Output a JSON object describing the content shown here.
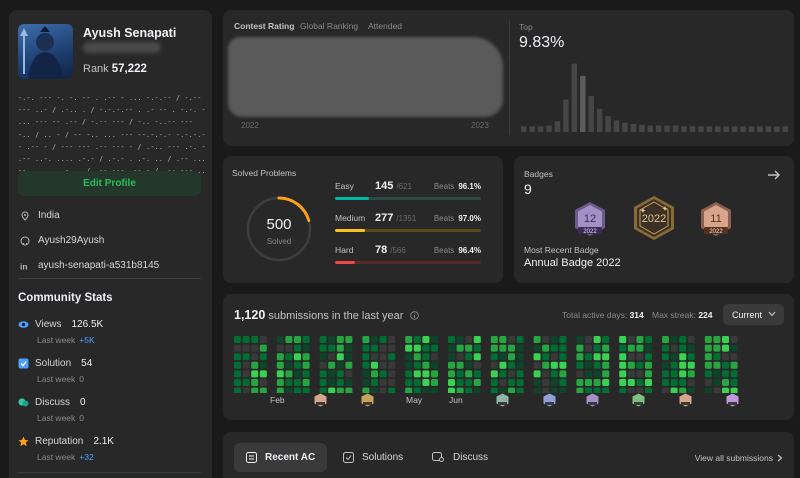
{
  "profile": {
    "username": "Ayush Senapati",
    "rank_label": "Rank",
    "rank_value": "57,222",
    "bio": "-.-. --- -.  -. -- . .-- - ... -.-.--  / -.-- --- ..- / .-.. . / -.-.-.-- . .- -- . -.-. - ... ---  --  .-- / -.-- --- / -.. -..-- --- -.. / .. - / -- -.. ... --- --.-.-.-  -.-.-.-- .-- - / --- --- .-- ---  - / .-.. --- .-. - .-- ..-. .... .-.- / .-.- . .-. .. / .-- ...-- .... . .- .. / .-- --- .-- - / .-- --- ..-",
    "edit_profile": "Edit Profile",
    "location": "India",
    "github": "Ayush29Ayush",
    "linkedin": "ayush-senapati-a531b8145"
  },
  "community": {
    "title": "Community Stats",
    "last_week_label": "Last week",
    "items": [
      {
        "label": "Views",
        "value": "126.5K",
        "delta": "+5K",
        "icon": "eye-icon",
        "color": "#2db55d"
      },
      {
        "label": "Solution",
        "value": "54",
        "delta": "0",
        "icon": "check-square-icon",
        "color": "#4ba0ff"
      },
      {
        "label": "Discuss",
        "value": "0",
        "delta": "0",
        "icon": "discuss-icon",
        "color": "#2ec7a8"
      },
      {
        "label": "Reputation",
        "value": "2.1K",
        "delta": "+32",
        "icon": "star-icon",
        "color": "#ffa116"
      }
    ]
  },
  "contest": {
    "tabs": [
      "Contest Rating",
      "Global Ranking",
      "Attended"
    ],
    "year_start": "2022",
    "year_end": "2023",
    "top_label": "Top",
    "top_value": "9.83%"
  },
  "chart_data": {
    "type": "bar",
    "title": "Top",
    "xlabel": "",
    "ylabel": "",
    "ylim": [
      0,
      100
    ],
    "categories": [
      "1",
      "2",
      "3",
      "4",
      "5",
      "6",
      "7",
      "8",
      "9",
      "10",
      "11",
      "12",
      "13",
      "14",
      "15",
      "16",
      "17",
      "18",
      "19",
      "20",
      "21",
      "22",
      "23",
      "24",
      "25",
      "26",
      "27",
      "28",
      "29",
      "30",
      "31",
      "32"
    ],
    "values": [
      8,
      8,
      8,
      9,
      15,
      45,
      95,
      78,
      50,
      32,
      22,
      16,
      13,
      11,
      10,
      9,
      9,
      9,
      9,
      8,
      8,
      8,
      8,
      8,
      8,
      8,
      8,
      8,
      8,
      8,
      8,
      8
    ],
    "highlight_index": 7
  },
  "solved": {
    "title": "Solved Problems",
    "count": "500",
    "count_label": "Solved",
    "beats_label": "Beats",
    "difficulties": [
      {
        "name": "Easy",
        "solved": "145",
        "total": "/621",
        "beats": "96.1%",
        "fraction": 0.2335,
        "color": "#00b8a3",
        "track": "#2a4a44"
      },
      {
        "name": "Medium",
        "solved": "277",
        "total": "/1351",
        "beats": "97.0%",
        "fraction": 0.205,
        "color": "#ffc01e",
        "track": "#5a4a1e"
      },
      {
        "name": "Hard",
        "solved": "78",
        "total": "/566",
        "beats": "96.4%",
        "fraction": 0.138,
        "color": "#ef4743",
        "track": "#5a2a2a"
      }
    ],
    "ring_fraction": 0.205
  },
  "badges": {
    "label": "Badges",
    "count": "9",
    "recent_label": "Most Recent Badge",
    "recent_name": "Annual Badge 2022",
    "items": [
      {
        "text": "12",
        "year": "2022",
        "color": "#a48fc6"
      },
      {
        "text": "2022",
        "year": "",
        "color": "#c9a25c"
      },
      {
        "text": "11",
        "year": "2022",
        "color": "#d8a48a"
      }
    ]
  },
  "submissions": {
    "count": "1,120",
    "title_suffix": "submissions in the last year",
    "active_days_label": "Total active days:",
    "active_days": "314",
    "max_streak_label": "Max streak:",
    "max_streak": "224",
    "selector": "Current",
    "months": [
      "Feb",
      "May",
      "Jun"
    ]
  },
  "tabs": {
    "recent_ac": "Recent AC",
    "solutions": "Solutions",
    "discuss": "Discuss",
    "view_all": "View all submissions"
  }
}
